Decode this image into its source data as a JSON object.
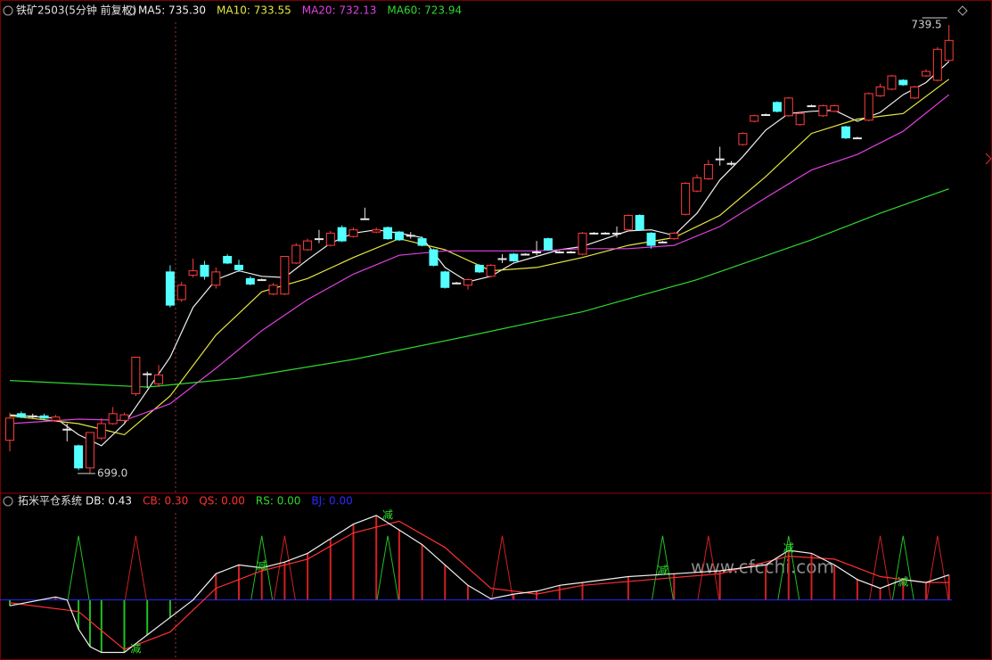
{
  "chart_data": [
    {
      "type": "candlestick",
      "title": "铁矿2503(5分钟 前复权)",
      "up_color": "#ff3c3c",
      "down_color": "#54ffff",
      "flat_color": "#e8e8e8",
      "ylim": [
        697.3,
        741.75
      ],
      "open": [
        702,
        704.4,
        704.2,
        704.2,
        703.8,
        703,
        701.5,
        699.5,
        702.2,
        703.5,
        703.8,
        706.2,
        708,
        707.1,
        717.2,
        714.7,
        716.9,
        717.8,
        716,
        718.6,
        717.8,
        716.6,
        716.5,
        715.2,
        715.2,
        718,
        719.2,
        720.2,
        719.6,
        721.2,
        720.4,
        722,
        720.8,
        721.2,
        720.8,
        720.5,
        720.2,
        719.2,
        717.2,
        716.2,
        716,
        717.8,
        716.8,
        718.4,
        718.8,
        718.8,
        719,
        720.2,
        719,
        719,
        718.8,
        720.7,
        720.7,
        720.7,
        721,
        722.3,
        720.7,
        719.9,
        720.2,
        722.4,
        724.5,
        725.6,
        727.4,
        727,
        728.7,
        730.8,
        731.4,
        732.5,
        731.3,
        730.5,
        732.2,
        731.3,
        731.7,
        730.3,
        729.3,
        730.9,
        733.1,
        733.7,
        734.5,
        732.9,
        734.9,
        734.5,
        736.3
      ],
      "high": [
        704.5,
        704.6,
        704.4,
        704.4,
        704.3,
        703.5,
        701.6,
        702.7,
        704,
        705,
        704.5,
        709.5,
        708.2,
        708.8,
        717.8,
        716.3,
        718.4,
        718.2,
        717.6,
        718.8,
        718.3,
        716.8,
        716.6,
        716.2,
        718.6,
        719.8,
        720.2,
        721,
        720.9,
        721.4,
        721.2,
        723,
        721.2,
        721.3,
        720.9,
        720.8,
        720.4,
        719.3,
        717.3,
        716.3,
        716.6,
        717.9,
        717.9,
        718.8,
        718.9,
        718.9,
        720,
        720.3,
        719.1,
        719.1,
        720.8,
        720.8,
        720.8,
        721.3,
        722.4,
        722.4,
        720.8,
        720,
        720.8,
        725.3,
        726,
        727.3,
        728.5,
        727.2,
        729.8,
        731.4,
        731.5,
        732.6,
        733,
        731.6,
        732.3,
        732.3,
        732.3,
        730.4,
        729.4,
        733.4,
        734.2,
        735,
        734.6,
        734,
        735.5,
        737.5,
        739.5
      ],
      "low": [
        701,
        704,
        704,
        703.9,
        703.7,
        701.9,
        699.3,
        699,
        702,
        703.4,
        703.6,
        706,
        706.7,
        706.8,
        714,
        714.5,
        716.7,
        716.5,
        715.7,
        717.9,
        717.2,
        716,
        716.4,
        715.1,
        715.1,
        717.9,
        719.1,
        719.8,
        719.5,
        719.9,
        720.3,
        721.9,
        720.7,
        720.1,
        720,
        720.2,
        719.5,
        717.7,
        715.7,
        716.1,
        715.6,
        717.1,
        716.7,
        718,
        718.1,
        718.7,
        718.7,
        719.1,
        718.9,
        718.9,
        718.7,
        720.6,
        720.6,
        720.3,
        720.9,
        720.9,
        719.3,
        719.8,
        720.1,
        722.3,
        724.4,
        725.5,
        726.8,
        726.8,
        728.6,
        730.7,
        731.3,
        731.6,
        731.2,
        730.4,
        732.1,
        731.2,
        731.6,
        729.2,
        729.2,
        730.8,
        733,
        733.6,
        734,
        732.8,
        734.8,
        734.4,
        736.2
      ],
      "close": [
        704,
        704.1,
        704.2,
        704,
        704.1,
        703,
        699.5,
        702.7,
        703.5,
        704.4,
        704.3,
        709.5,
        708,
        707.9,
        714.2,
        716,
        717.3,
        716.8,
        717.2,
        718,
        717.4,
        716.1,
        716.5,
        716,
        718.6,
        719.6,
        720,
        720.2,
        720.7,
        720,
        721,
        722,
        721,
        720.2,
        720.1,
        720.5,
        719.6,
        717.8,
        715.8,
        716.2,
        716.5,
        717.2,
        717.8,
        718.4,
        718.2,
        718.8,
        719,
        719.2,
        719,
        719,
        720.7,
        720.7,
        720.7,
        720.7,
        722.3,
        721,
        719.6,
        719.9,
        720.7,
        725.2,
        725.7,
        726.9,
        727.4,
        727,
        729.7,
        731.3,
        731.4,
        731.7,
        732.9,
        731.5,
        732.2,
        732.2,
        732.2,
        729.3,
        729.3,
        733.3,
        733.9,
        734.9,
        734.1,
        733.9,
        735.3,
        737.3,
        738.1
      ],
      "high_label": 739.5,
      "low_label": {
        "value": 699,
        "label": "699.0"
      },
      "series": [
        {
          "name": "MA5: 735.30",
          "color": "#f0f0f0",
          "x": [
            0,
            4,
            6,
            8,
            10,
            12,
            14,
            16,
            18,
            20,
            22,
            24,
            26,
            28,
            30,
            32,
            34,
            36,
            38,
            40,
            42,
            44,
            46,
            48,
            50,
            52,
            54,
            56,
            58,
            60,
            62,
            64,
            66,
            68,
            70,
            72,
            74,
            76,
            78,
            80,
            82
          ],
          "values": [
            704.3,
            704,
            702.5,
            701.5,
            703.5,
            706.5,
            709.5,
            714,
            716.5,
            717.3,
            716.8,
            716.7,
            718.3,
            719.8,
            720.7,
            721,
            720.7,
            720.3,
            717.6,
            716.3,
            716.8,
            718,
            718.6,
            719.2,
            719.5,
            720.2,
            720.9,
            721,
            720.5,
            722.5,
            725.5,
            727.6,
            730,
            731.5,
            731.7,
            731.8,
            730.8,
            731.6,
            733.2,
            734.3,
            736.2
          ]
        },
        {
          "name": "MA10: 733.55",
          "color": "#e6e640",
          "x": [
            0,
            6,
            10,
            14,
            18,
            22,
            26,
            30,
            34,
            38,
            42,
            46,
            50,
            54,
            58,
            62,
            66,
            70,
            74,
            78,
            82
          ],
          "values": [
            704.2,
            703.5,
            702.5,
            706,
            711.5,
            715.4,
            716.6,
            718.5,
            720.2,
            719.2,
            717.3,
            717.6,
            718.5,
            719.6,
            720.3,
            722.3,
            725.8,
            729.7,
            731,
            731.5,
            734.6
          ]
        },
        {
          "name": "MA20: 732.13",
          "color": "#e040e0",
          "x": [
            0,
            6,
            10,
            14,
            18,
            22,
            26,
            30,
            34,
            38,
            42,
            46,
            50,
            54,
            58,
            62,
            66,
            70,
            74,
            78,
            82
          ],
          "values": [
            703.5,
            703.9,
            703.8,
            705.3,
            708.5,
            711.9,
            714.7,
            717,
            718.7,
            719.1,
            719.1,
            719.1,
            719.3,
            719.3,
            719.6,
            721.3,
            723.9,
            726.4,
            727.8,
            729.9,
            733.2
          ]
        },
        {
          "name": "MA60: 723.94",
          "color": "#30d830",
          "x": [
            0,
            12,
            20,
            30,
            40,
            50,
            60,
            70,
            76,
            82
          ],
          "values": [
            707.4,
            706.8,
            707.6,
            709.3,
            711.4,
            713.6,
            716.5,
            720.1,
            722.5,
            724.7
          ]
        }
      ]
    },
    {
      "type": "indicator",
      "title": "拓米平仓系统",
      "watermark": "www.cfcchi.com",
      "ylim": [
        -1.03,
        1.8
      ],
      "series": [
        {
          "name": "DB: 0.43",
          "color": "#f0f0f0",
          "x": [
            0,
            4,
            5,
            6,
            7,
            8,
            10,
            12,
            14,
            16,
            18,
            20,
            22,
            24,
            26,
            28,
            30,
            32,
            34,
            36,
            38,
            40,
            42,
            44,
            46,
            48,
            50,
            54,
            58,
            62,
            66,
            68,
            70,
            72,
            74,
            76,
            78,
            80,
            82
          ],
          "values": [
            -0.1,
            0.05,
            0,
            -0.5,
            -0.8,
            -0.9,
            -0.9,
            -0.6,
            -0.3,
            0,
            0.45,
            0.6,
            0.55,
            0.65,
            0.8,
            1.05,
            1.3,
            1.45,
            1.2,
            0.95,
            0.6,
            0.25,
            0.02,
            0.1,
            0.15,
            0.25,
            0.3,
            0.4,
            0.45,
            0.5,
            0.6,
            0.85,
            0.8,
            0.6,
            0.35,
            0.2,
            0.35,
            0.3,
            0.43
          ]
        },
        {
          "name": "CB: 0.30",
          "color": "#ff3030",
          "x": [
            0,
            6,
            10,
            14,
            18,
            22,
            26,
            30,
            34,
            38,
            42,
            46,
            50,
            56,
            62,
            68,
            72,
            76,
            80,
            82
          ],
          "values": [
            -0.05,
            -0.2,
            -0.85,
            -0.55,
            0.2,
            0.5,
            0.7,
            1.15,
            1.35,
            0.9,
            0.2,
            0.1,
            0.25,
            0.35,
            0.45,
            0.75,
            0.7,
            0.4,
            0.3,
            0.3
          ]
        },
        {
          "name": "QS: 0.00",
          "color": "#ff3030"
        },
        {
          "name": "RS: 0.00",
          "color": "#30d830"
        },
        {
          "name": "BJ: 0.00",
          "color": "#2a2aff"
        }
      ],
      "signal_level": 1.1,
      "red_signals": [
        11,
        24,
        43,
        61,
        76,
        81
      ],
      "green_signals": [
        6,
        22,
        33,
        57,
        68,
        78
      ],
      "markers": [
        {
          "x": 33,
          "y": 1.45,
          "text": "减"
        },
        {
          "x": 11,
          "y": -0.85,
          "text": "减"
        },
        {
          "x": 22,
          "y": 0.58,
          "text": "减"
        },
        {
          "x": 57,
          "y": 0.5,
          "text": "减"
        },
        {
          "x": 68,
          "y": 0.88,
          "text": "减"
        },
        {
          "x": 78,
          "y": 0.3,
          "text": "减"
        }
      ]
    }
  ]
}
